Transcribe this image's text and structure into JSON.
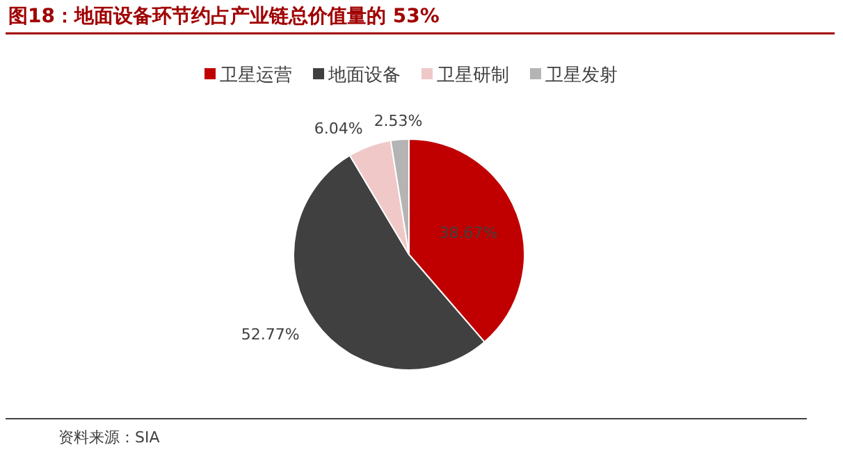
{
  "chart_data": {
    "type": "pie",
    "title": "图18：地面设备环节约占产业链总价值量的 53%",
    "categories": [
      "卫星运营",
      "地面设备",
      "卫星研制",
      "卫星发射"
    ],
    "values": [
      38.67,
      52.77,
      6.04,
      2.53
    ],
    "colors": [
      "#c00000",
      "#404040",
      "#f0c8c8",
      "#b4b4b4"
    ],
    "value_labels": [
      "38.67%",
      "52.77%",
      "6.04%",
      "2.53%"
    ],
    "legend": "top",
    "annotations": [
      "资料来源：SIA"
    ]
  }
}
